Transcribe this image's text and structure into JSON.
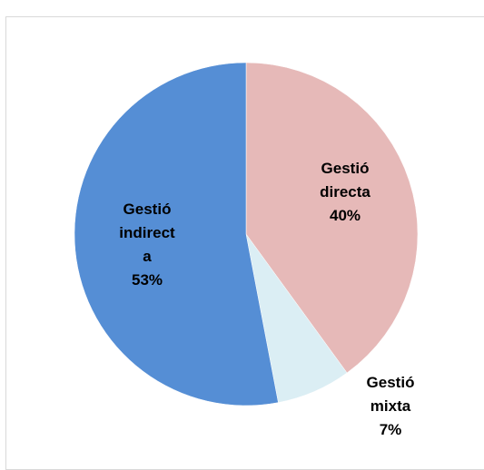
{
  "chart_data": {
    "type": "pie",
    "categories": [
      "Gestió directa",
      "Gestió mixta",
      "Gestió indirecta"
    ],
    "values": [
      40,
      7,
      53
    ],
    "value_labels": [
      "40%",
      "7%",
      "53%"
    ],
    "colors": [
      "#e6b9b8",
      "#dbeef4",
      "#558ed5"
    ]
  }
}
